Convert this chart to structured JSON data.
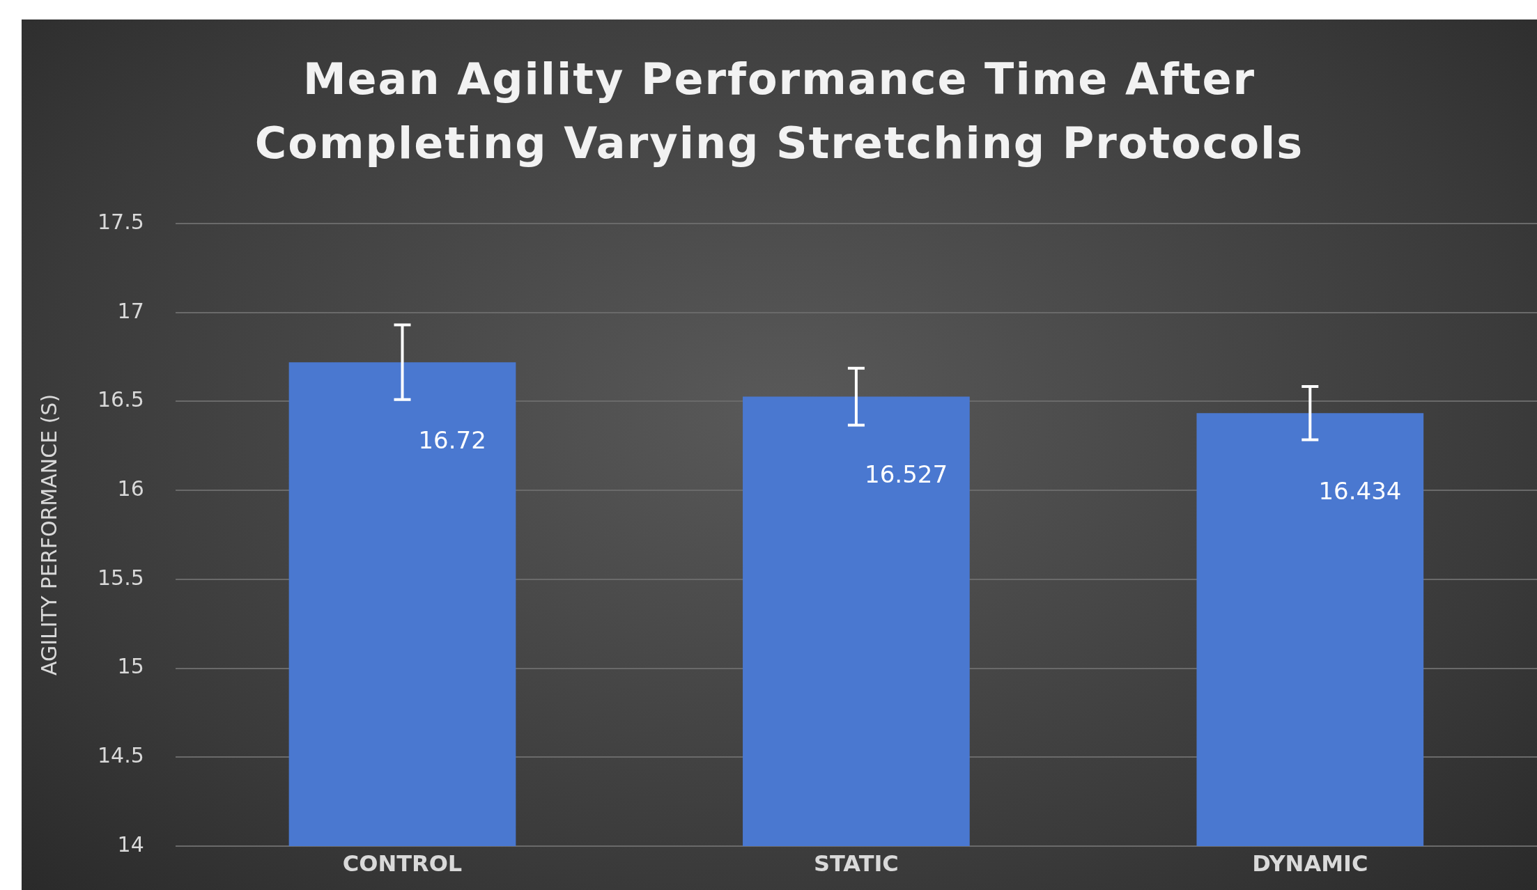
{
  "chart_data": {
    "type": "bar",
    "title": "Mean Agility Performance Time After Completing Varying Stretching Protocols",
    "ylabel": "AGILITY PERFORMANCE (S)",
    "categories": [
      "CONTROL",
      "STATIC",
      "DYNAMIC"
    ],
    "values": [
      16.72,
      16.527,
      16.434
    ],
    "errors": [
      0.21,
      0.16,
      0.15
    ],
    "color": "#4a78d0",
    "ylim": [
      14,
      17.5
    ],
    "yticks": [
      14,
      14.5,
      15,
      15.5,
      16,
      16.5,
      17,
      17.5
    ],
    "grid": "y",
    "data_labels": true,
    "legend": false
  }
}
